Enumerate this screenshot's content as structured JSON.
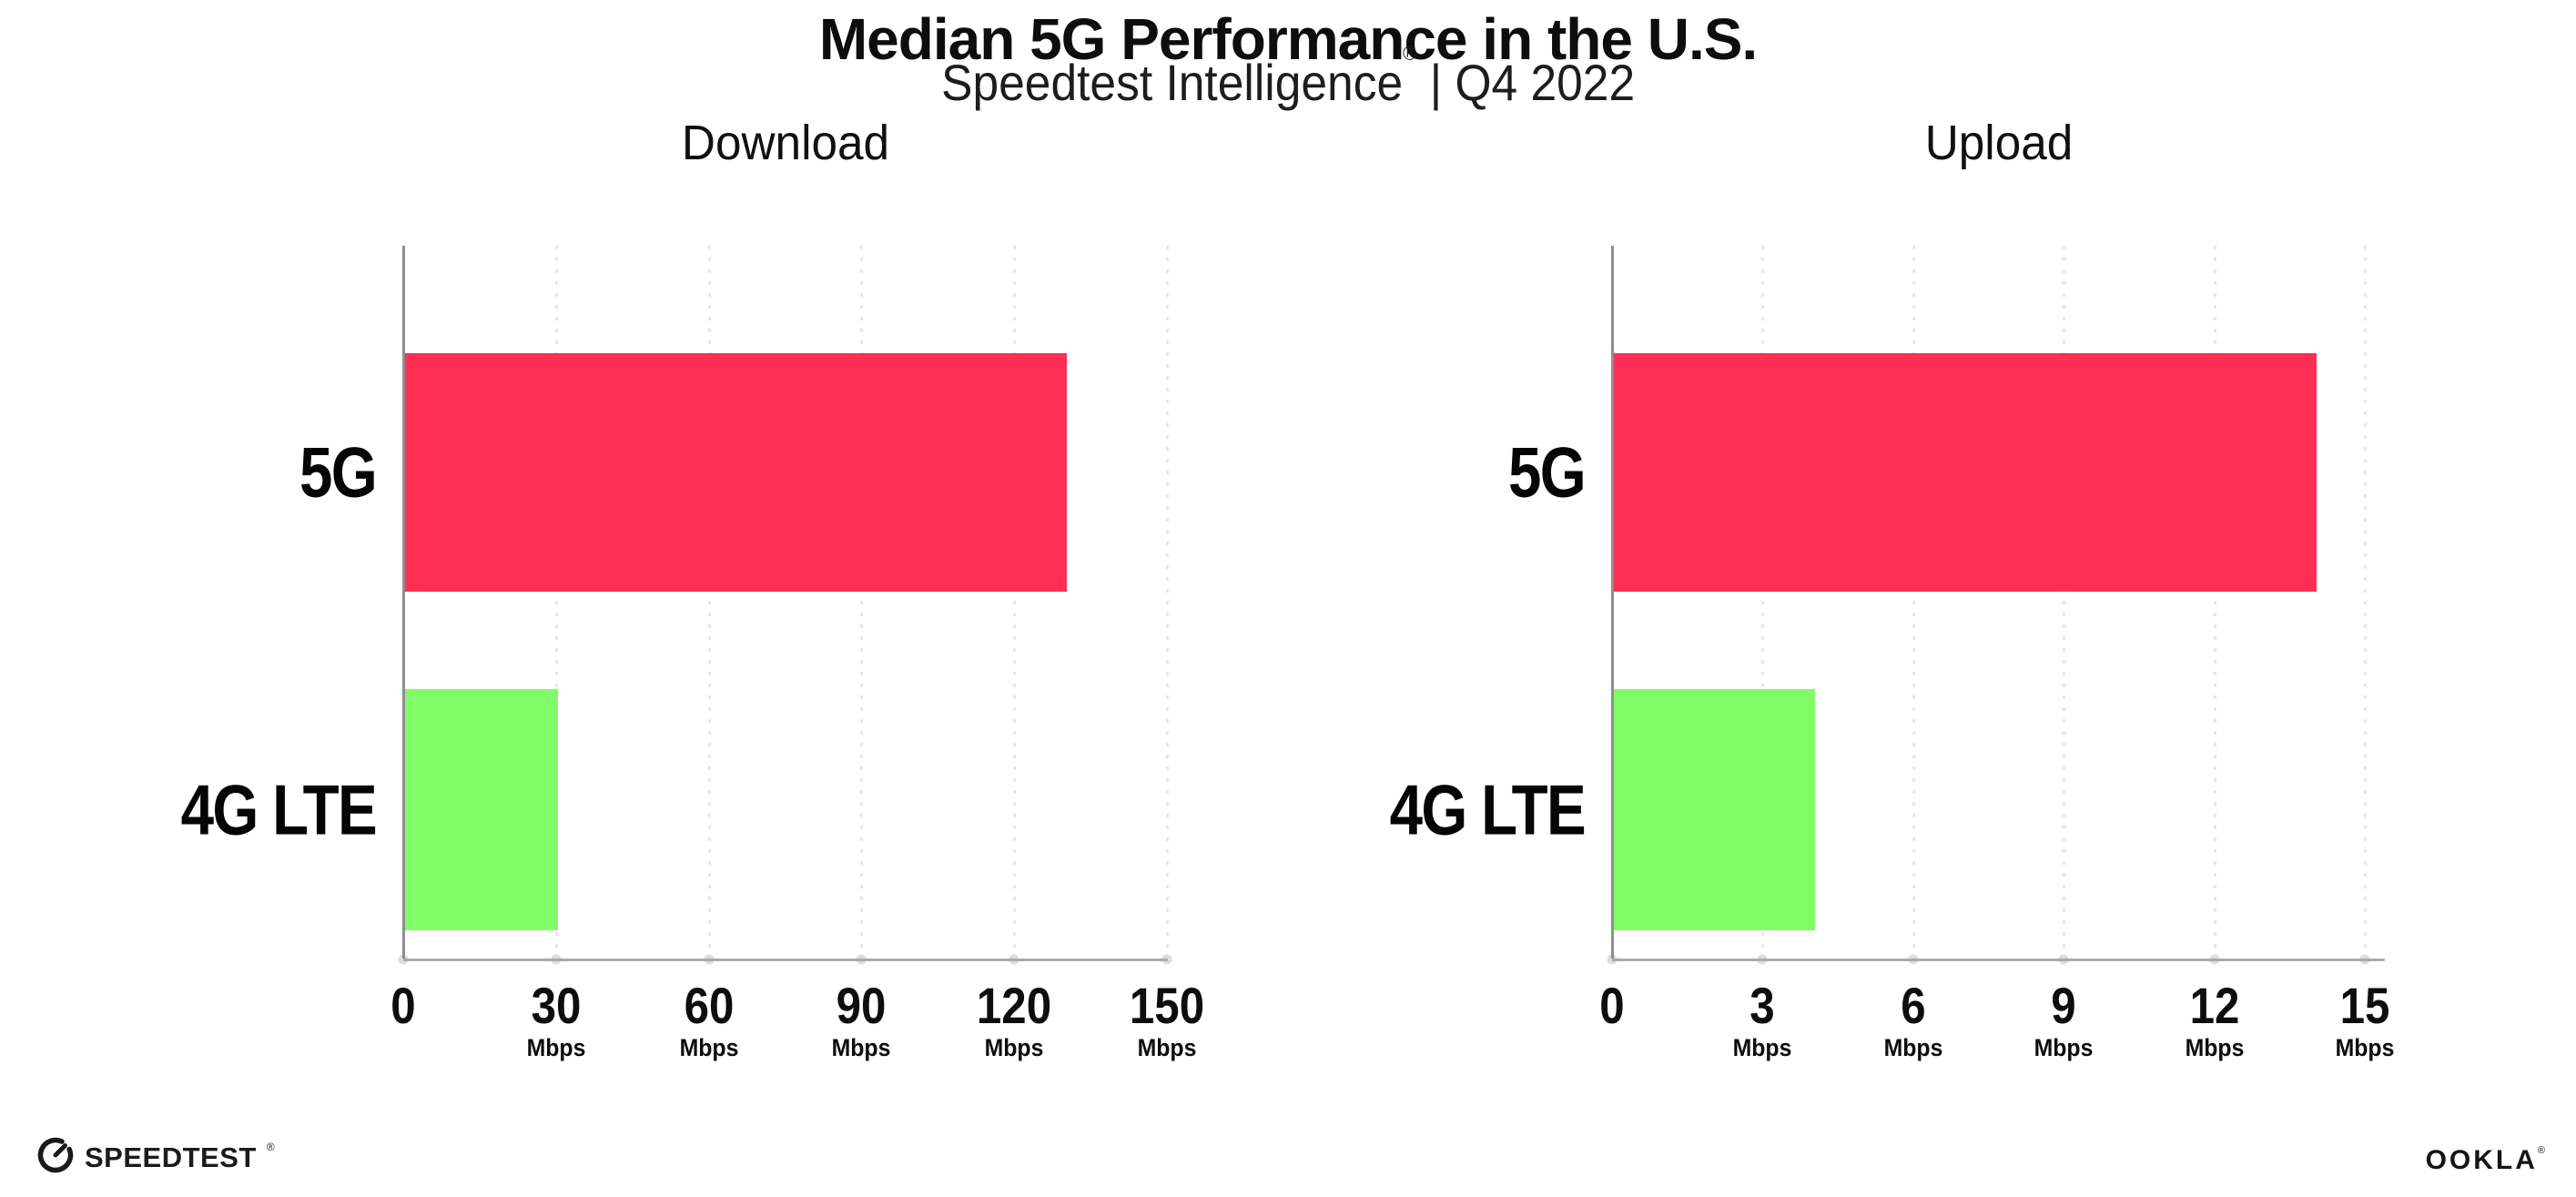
{
  "header": {
    "title": "Median 5G Performance in the U.S.",
    "subtitle": "Speedtest Intelligence",
    "subtitle_mark": "®",
    "subtitle_period": "| Q4 2022"
  },
  "chart_data": [
    {
      "type": "bar",
      "orientation": "horizontal",
      "title": "Download",
      "categories": [
        "5G",
        "4G LTE"
      ],
      "values": [
        130,
        30
      ],
      "unit": "Mbps",
      "xlim": [
        0,
        150
      ],
      "xticks": [
        0,
        30,
        60,
        90,
        120,
        150
      ],
      "bar_colors": [
        "#ff2e57",
        "#80fc66"
      ],
      "grid": "vertical-dotted",
      "legend": "none"
    },
    {
      "type": "bar",
      "orientation": "horizontal",
      "title": "Upload",
      "categories": [
        "5G",
        "4G LTE"
      ],
      "values": [
        14,
        4
      ],
      "unit": "Mbps",
      "xlim": [
        0,
        15
      ],
      "xticks": [
        0,
        3,
        6,
        9,
        12,
        15
      ],
      "bar_colors": [
        "#ff2e57",
        "#80fc66"
      ],
      "grid": "vertical-dotted",
      "legend": "none"
    }
  ],
  "footer": {
    "speedtest_label": "SPEEDTEST",
    "speedtest_mark": "®",
    "ookla_label": "OOKLA",
    "ookla_mark": "®"
  },
  "colors": {
    "bar_5g": "#ff2e57",
    "bar_4g_lte": "#80fc66",
    "axis_line": "#9a9a9a",
    "gridline": "#e6e6ef",
    "axis_dot": "#dcdce6",
    "text": "#111111"
  }
}
